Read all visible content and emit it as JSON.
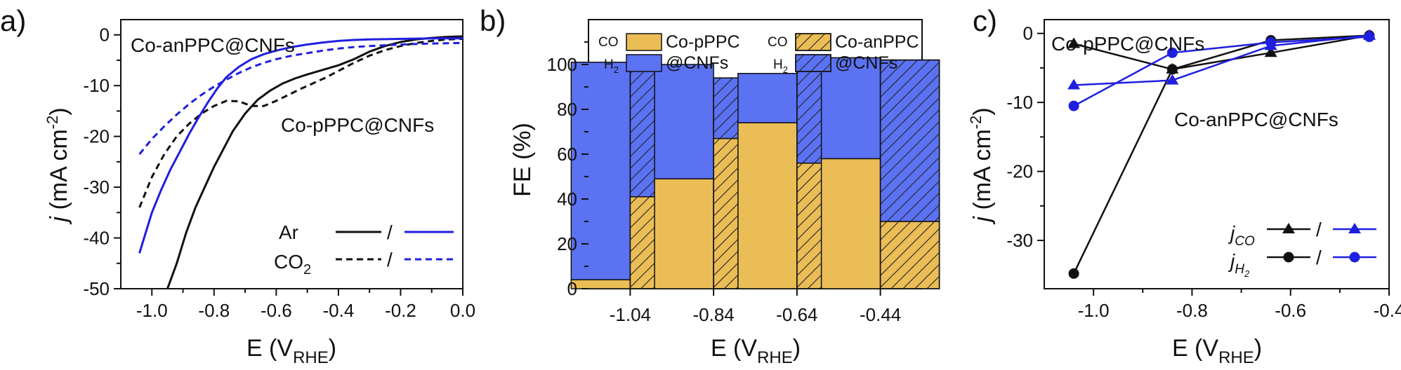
{
  "colors": {
    "black": "#111111",
    "blue": "#1f1fe0",
    "fe_co": "#ebbd56",
    "fe_h2": "#5b72f2",
    "hatch": "#222222"
  },
  "chart_data": [
    {
      "id": "a",
      "panel_label": "a)",
      "type": "line",
      "xlabel": "E (V",
      "xlabel_sub": "RHE",
      "xlabel_end": ")",
      "ylabel_var": "j",
      "ylabel_rest": " (mA cm",
      "ylabel_sup": "-2",
      "ylabel_end": ")",
      "xlim": [
        -1.1,
        0.0
      ],
      "ylim": [
        -50,
        3
      ],
      "xticks": [
        -1.0,
        -0.8,
        -0.6,
        -0.4,
        -0.2,
        0.0
      ],
      "xtick_labels": [
        "-1.0",
        "-0.8",
        "-0.6",
        "-0.4",
        "-0.2",
        "0.0"
      ],
      "yticks": [
        0,
        -10,
        -20,
        -30,
        -40,
        -50
      ],
      "ytick_labels": [
        "0",
        "-10",
        "-20",
        "-30",
        "-40",
        "-50"
      ],
      "annotations": [
        {
          "text": "Co-anPPC@CNFs",
          "color": "blue"
        },
        {
          "text": "Co-pPPC@CNFs",
          "color": "black"
        }
      ],
      "legend": {
        "placement": "bottom-right",
        "rows": [
          {
            "label": "Ar",
            "label_sub": "",
            "separator": "/",
            "style": "solid"
          },
          {
            "label": "CO",
            "label_sub": "2",
            "separator": "/",
            "style": "dashed"
          }
        ]
      },
      "series": [
        {
          "color": "black",
          "style": "solid",
          "x": [
            -0.95,
            -0.92,
            -0.89,
            -0.86,
            -0.83,
            -0.8,
            -0.77,
            -0.74,
            -0.7,
            -0.66,
            -0.62,
            -0.58,
            -0.54,
            -0.5,
            -0.45,
            -0.4,
            -0.35,
            -0.3,
            -0.25,
            -0.2,
            -0.15,
            -0.1,
            -0.05,
            0.0
          ],
          "y": [
            -50,
            -45,
            -39,
            -34,
            -30,
            -26,
            -22.5,
            -19,
            -15.5,
            -12.8,
            -11,
            -9.6,
            -8.6,
            -7.8,
            -6.9,
            -6.0,
            -4.8,
            -3.3,
            -2.2,
            -1.4,
            -0.9,
            -0.6,
            -0.4,
            -0.3
          ]
        },
        {
          "color": "black",
          "style": "dashed",
          "x": [
            -1.04,
            -1.0,
            -0.96,
            -0.92,
            -0.88,
            -0.84,
            -0.8,
            -0.76,
            -0.72,
            -0.68,
            -0.64,
            -0.6,
            -0.56,
            -0.52,
            -0.48,
            -0.44,
            -0.4,
            -0.35,
            -0.3,
            -0.25,
            -0.2,
            -0.15,
            -0.1,
            -0.05,
            0.0
          ],
          "y": [
            -34,
            -28,
            -23.5,
            -20,
            -17.5,
            -15.5,
            -14,
            -13,
            -13.1,
            -14,
            -14,
            -13,
            -11.8,
            -10.6,
            -9.5,
            -8.4,
            -7.1,
            -5.5,
            -4.1,
            -3,
            -2.2,
            -1.6,
            -1.2,
            -0.9,
            -0.8
          ]
        },
        {
          "color": "blue",
          "style": "solid",
          "x": [
            -1.04,
            -1.02,
            -1.0,
            -0.97,
            -0.94,
            -0.91,
            -0.88,
            -0.85,
            -0.82,
            -0.79,
            -0.76,
            -0.72,
            -0.68,
            -0.64,
            -0.6,
            -0.55,
            -0.5,
            -0.45,
            -0.4,
            -0.35,
            -0.3,
            -0.2,
            -0.1,
            0.0
          ],
          "y": [
            -43,
            -39,
            -35,
            -30.5,
            -26.5,
            -23,
            -19.5,
            -16.3,
            -13.3,
            -10.6,
            -8.3,
            -6.3,
            -4.8,
            -3.8,
            -3.1,
            -2.4,
            -1.9,
            -1.5,
            -1.2,
            -1.0,
            -0.9,
            -0.8,
            -0.7,
            -0.7
          ]
        },
        {
          "color": "blue",
          "style": "dashed",
          "x": [
            -1.04,
            -1.0,
            -0.96,
            -0.92,
            -0.88,
            -0.84,
            -0.8,
            -0.76,
            -0.72,
            -0.68,
            -0.64,
            -0.6,
            -0.55,
            -0.5,
            -0.45,
            -0.4,
            -0.35,
            -0.3,
            -0.2,
            -0.1,
            0.0
          ],
          "y": [
            -23.5,
            -20.5,
            -18,
            -15.7,
            -13.6,
            -11.8,
            -10.2,
            -8.8,
            -7.5,
            -6.4,
            -5.5,
            -4.8,
            -4.1,
            -3.6,
            -3.1,
            -2.7,
            -2.4,
            -2.2,
            -1.9,
            -1.7,
            -1.6
          ]
        }
      ]
    },
    {
      "id": "b",
      "panel_label": "b)",
      "type": "bar",
      "subtype": "stacked",
      "ylabel": "FE (%)",
      "xlabel": "E (V",
      "xlabel_sub": "RHE",
      "xlabel_end": ")",
      "ylim": [
        0,
        120
      ],
      "yticks": [
        0,
        20,
        40,
        60,
        80,
        100
      ],
      "ytick_labels": [
        "0",
        "20",
        "40",
        "60",
        "80",
        "100"
      ],
      "categories": [
        "-1.04",
        "-0.84",
        "-0.64",
        "-0.44"
      ],
      "legend": {
        "placement": "top",
        "groups": [
          {
            "co_label": "CO",
            "h2_label": "H",
            "h2_sub": "2",
            "line1": "Co-pPPC",
            "line2": "@CNFs",
            "hatched": false
          },
          {
            "co_label": "CO",
            "h2_label": "H",
            "h2_sub": "2",
            "line1": "Co-anPPC",
            "line2": "@CNFs",
            "hatched": true
          }
        ]
      },
      "series": [
        {
          "name": "Co-pPPC@CNFs",
          "hatched": false,
          "co": [
            4,
            49,
            74,
            58
          ],
          "total": [
            101,
            100,
            96,
            103
          ]
        },
        {
          "name": "Co-anPPC@CNFs",
          "hatched": true,
          "co": [
            41,
            67,
            56,
            30
          ],
          "total": [
            98,
            94,
            98,
            102
          ]
        }
      ]
    },
    {
      "id": "c",
      "panel_label": "c)",
      "type": "line",
      "xlabel": "E (V",
      "xlabel_sub": "RHE",
      "xlabel_end": ")",
      "ylabel_var": "j",
      "ylabel_rest": " (mA cm",
      "ylabel_sup": "-2",
      "ylabel_end": ")",
      "xlim": [
        -1.1,
        -0.4
      ],
      "ylim": [
        -37,
        2
      ],
      "xticks": [
        -1.0,
        -0.8,
        -0.6,
        -0.4
      ],
      "xtick_labels": [
        "-1.0",
        "-0.8",
        "-0.6",
        "-0.4"
      ],
      "yticks": [
        0,
        -10,
        -20,
        -30
      ],
      "ytick_labels": [
        "0",
        "-10",
        "-20",
        "-30"
      ],
      "annotations": [
        {
          "text": "Co-pPPC@CNFs",
          "color": "black"
        },
        {
          "text": "Co-anPPC@CNFs",
          "color": "blue"
        }
      ],
      "legend": {
        "placement": "bottom-right",
        "rows": [
          {
            "label": "j",
            "label_sub": "CO",
            "separator": "/",
            "marker": "triangle"
          },
          {
            "label": "j",
            "label_sub": "H",
            "label_subsub": "2",
            "separator": "/",
            "marker": "circle"
          }
        ]
      },
      "series": [
        {
          "color": "black",
          "marker": "triangle",
          "x": [
            -1.04,
            -0.84,
            -0.64,
            -0.44
          ],
          "y": [
            -1.5,
            -5.2,
            -2.8,
            -0.3
          ]
        },
        {
          "color": "black",
          "marker": "circle",
          "x": [
            -1.04,
            -0.84,
            -0.64,
            -0.44
          ],
          "y": [
            -34.8,
            -5.2,
            -1.0,
            -0.3
          ]
        },
        {
          "color": "blue",
          "marker": "triangle",
          "x": [
            -1.04,
            -0.84,
            -0.64,
            -0.44
          ],
          "y": [
            -7.5,
            -6.8,
            -1.8,
            -0.3
          ]
        },
        {
          "color": "blue",
          "marker": "circle",
          "x": [
            -1.04,
            -0.84,
            -0.64,
            -0.44
          ],
          "y": [
            -10.5,
            -2.8,
            -1.3,
            -0.5
          ]
        }
      ]
    }
  ]
}
